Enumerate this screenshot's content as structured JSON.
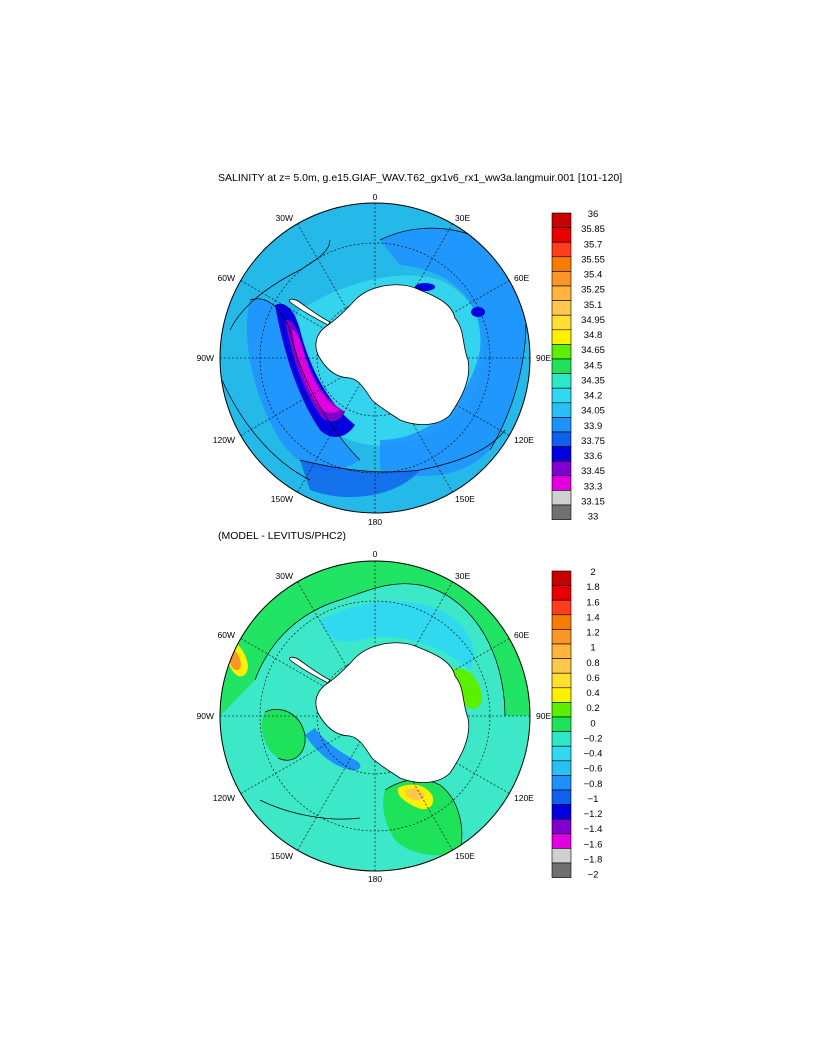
{
  "title": "SALINITY at z=   5.0m, g.e15.GIAF_WAV.T62_gx1v6_rx1_ww3a.langmuir.001 [101-120]",
  "subtitle": "(MODEL - LEVITUS/PHC2)",
  "longitude_labels": {
    "top": "0",
    "bottom": "180",
    "left": "90W",
    "right": "90E",
    "upper_left_1": "30W",
    "upper_left_2": "60W",
    "upper_right_1": "30E",
    "upper_right_2": "60E",
    "lower_left_1": "120W",
    "lower_left_2": "150W",
    "lower_right_1": "120E",
    "lower_right_2": "150E"
  },
  "maps": [
    {
      "name": "salinity",
      "background_color": "#24b9e8",
      "colorbar": {
        "labels": [
          "36",
          "35.85",
          "35.7",
          "35.55",
          "35.4",
          "35.25",
          "35.1",
          "34.95",
          "34.8",
          "34.65",
          "34.5",
          "34.35",
          "34.2",
          "34.05",
          "33.9",
          "33.75",
          "33.6",
          "33.45",
          "33.3",
          "33.15",
          "33"
        ],
        "colors": [
          "#c80000",
          "#e60000",
          "#ff3c1e",
          "#f77c00",
          "#fa9628",
          "#ffb43c",
          "#ffc84a",
          "#ffe030",
          "#fff000",
          "#5af000",
          "#1ee35a",
          "#2ee8c8",
          "#30d8f0",
          "#28c0f0",
          "#1e90ff",
          "#1060ee",
          "#0000e0",
          "#8000d0",
          "#e000e0",
          "#d0d0d0",
          "#707070"
        ]
      }
    },
    {
      "name": "difference",
      "background_color": "#3ce8c8",
      "colorbar": {
        "labels": [
          "2",
          "1.8",
          "1.6",
          "1.4",
          "1.2",
          "1",
          "0.8",
          "0.6",
          "0.4",
          "0.2",
          "0",
          "−0.2",
          "−0.4",
          "−0.6",
          "−0.8",
          "−1",
          "−1.2",
          "−1.4",
          "−1.6",
          "−1.8",
          "−2"
        ],
        "colors": [
          "#c80000",
          "#e60000",
          "#ff3c1e",
          "#f77c00",
          "#fa9628",
          "#ffb43c",
          "#ffc84a",
          "#ffe030",
          "#fff000",
          "#5af000",
          "#1ee35a",
          "#2ee8c8",
          "#30d8f0",
          "#28c0f0",
          "#1e90ff",
          "#1060ee",
          "#0000e0",
          "#8000d0",
          "#e000e0",
          "#d0d0d0",
          "#707070"
        ]
      }
    }
  ]
}
